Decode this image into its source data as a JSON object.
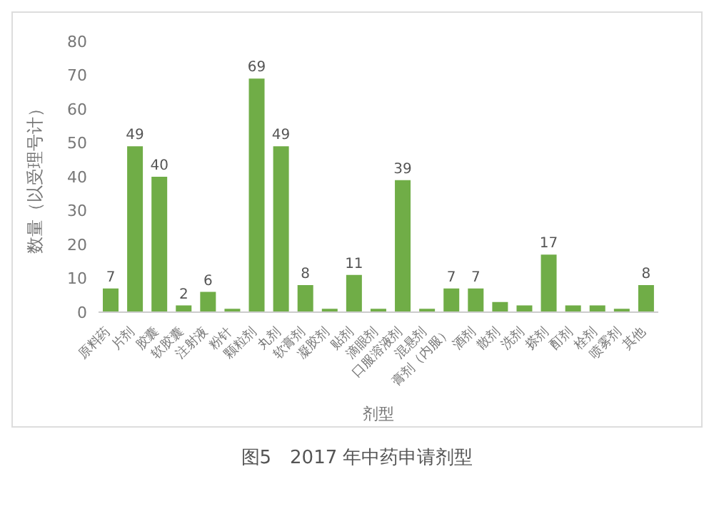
{
  "chart_data": {
    "type": "bar",
    "xlabel": "剂型",
    "ylabel": "数量（以受理号计）",
    "annotations": [
      "图5　2017 年中药申请剂型"
    ],
    "categories": [
      "原料药",
      "片剂",
      "胶囊",
      "软胶囊",
      "注射液",
      "粉针",
      "颗粒剂",
      "丸剂",
      "软膏剂",
      "凝胶剂",
      "贴剂",
      "滴眼剂",
      "口服溶液剂",
      "混悬剂",
      "膏剂（内服）",
      "酒剂",
      "散剂",
      "洗剂",
      "搽剂",
      "酊剂",
      "栓剂",
      "喷雾剂",
      "其他"
    ],
    "values": [
      7,
      49,
      40,
      2,
      6,
      1,
      69,
      49,
      8,
      1,
      11,
      1,
      39,
      1,
      7,
      7,
      3,
      2,
      17,
      2,
      2,
      1,
      8
    ],
    "value_labels": [
      "7",
      "49",
      "40",
      "2",
      "6",
      null,
      "69",
      "49",
      "8",
      null,
      "11",
      null,
      "39",
      null,
      "7",
      "7",
      null,
      null,
      "17",
      null,
      null,
      null,
      "8"
    ],
    "color": "#70ad47",
    "ylim": [
      0,
      80
    ],
    "yticks": [
      0,
      10,
      20,
      30,
      40,
      50,
      60,
      70,
      80
    ],
    "grid": false
  }
}
